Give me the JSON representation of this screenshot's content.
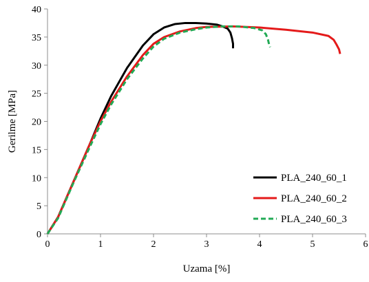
{
  "chart_data": {
    "type": "line",
    "title": "",
    "xlabel": "Uzama [%]",
    "ylabel": "Gerilme [MPa]",
    "xlim": [
      0,
      6
    ],
    "ylim": [
      0,
      40
    ],
    "xticks": [
      0,
      1,
      2,
      3,
      4,
      5,
      6
    ],
    "yticks": [
      0,
      5,
      10,
      15,
      20,
      25,
      30,
      35,
      40
    ],
    "xtick_labels": [
      "0",
      "1",
      "2",
      "3",
      "4",
      "5",
      "6"
    ],
    "ytick_labels": [
      "0",
      "5",
      "10",
      "15",
      "20",
      "25",
      "30",
      "35",
      "40"
    ],
    "grid": false,
    "legend_position": "bottom-right",
    "series": [
      {
        "name": "PLA_240_60_1",
        "color": "#000000",
        "dash": "solid",
        "x": [
          0,
          0.2,
          0.5,
          0.8,
          1.0,
          1.2,
          1.5,
          1.8,
          2.0,
          2.2,
          2.4,
          2.6,
          2.8,
          3.0,
          3.2,
          3.3,
          3.4,
          3.45,
          3.48,
          3.5,
          3.5
        ],
        "y": [
          0,
          3,
          9.5,
          16,
          20.5,
          24.5,
          29.5,
          33.5,
          35.5,
          36.7,
          37.3,
          37.5,
          37.5,
          37.4,
          37.2,
          36.9,
          36.5,
          35.8,
          34.8,
          33.8,
          33
        ]
      },
      {
        "name": "PLA_240_60_2",
        "color": "#e41a1a",
        "dash": "solid",
        "x": [
          0,
          0.2,
          0.5,
          0.8,
          1.0,
          1.2,
          1.5,
          1.8,
          2.0,
          2.2,
          2.5,
          2.8,
          3.0,
          3.5,
          4.0,
          4.5,
          5.0,
          5.3,
          5.4,
          5.45,
          5.5,
          5.52
        ],
        "y": [
          0,
          3,
          9.5,
          16,
          20,
          23.5,
          28,
          31.8,
          33.8,
          35,
          36,
          36.6,
          36.8,
          36.9,
          36.7,
          36.3,
          35.8,
          35.2,
          34.5,
          33.7,
          32.8,
          32
        ]
      },
      {
        "name": "PLA_240_60_3",
        "color": "#22aa55",
        "dash": "dashed",
        "x": [
          0,
          0.2,
          0.5,
          0.8,
          1.0,
          1.2,
          1.5,
          1.8,
          2.0,
          2.2,
          2.5,
          2.8,
          3.0,
          3.3,
          3.6,
          3.9,
          4.05,
          4.12,
          4.16,
          4.18,
          4.2
        ],
        "y": [
          0,
          2.8,
          9.3,
          15.5,
          19.5,
          23,
          27.5,
          31.2,
          33.3,
          34.7,
          35.8,
          36.4,
          36.7,
          36.9,
          36.9,
          36.6,
          36.2,
          35.5,
          34.5,
          33.7,
          33.2
        ]
      }
    ]
  }
}
